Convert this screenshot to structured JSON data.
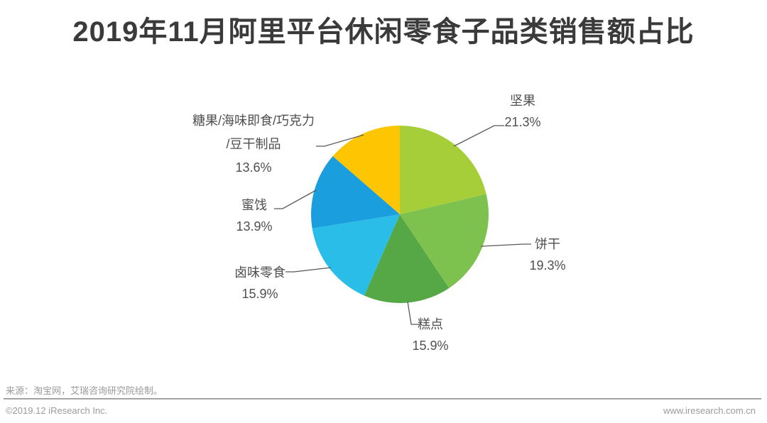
{
  "chart_data": {
    "type": "pie",
    "title": "2019年11月阿里平台休闲零食子品类销售额占比",
    "start_angle_deg": 0,
    "direction": "clockwise",
    "legend": "none",
    "labels_position": "outside-with-leader-lines",
    "total": 99.9,
    "slices": [
      {
        "label": "坚果",
        "value": 21.3,
        "value_label": "21.3%",
        "color": "#a6ce39"
      },
      {
        "label": "饼干",
        "value": 19.3,
        "value_label": "19.3%",
        "color": "#7dc24e"
      },
      {
        "label": "糕点",
        "value": 15.9,
        "value_label": "15.9%",
        "color": "#55a845"
      },
      {
        "label": "卤味零食",
        "value": 15.9,
        "value_label": "15.9%",
        "color": "#29bde8"
      },
      {
        "label": "蜜饯",
        "value": 13.9,
        "value_label": "13.9%",
        "color": "#1a9edd"
      },
      {
        "label": "糖果/海味即食/巧克力/豆干制品",
        "value": 13.6,
        "value_label": "13.6%",
        "color": "#fdc502",
        "name_lines": [
          "糖果/海味即食/巧克力",
          "/豆干制品"
        ]
      }
    ]
  },
  "footer": {
    "source": "来源：淘宝网，艾瑞咨询研究院绘制。",
    "copyright": "©2019.12 iResearch Inc.",
    "website": "www.iresearch.com.cn"
  },
  "style": {
    "leader_line_color": "#595959",
    "title_color": "#3a3a3a",
    "label_color": "#4f4f4f"
  }
}
